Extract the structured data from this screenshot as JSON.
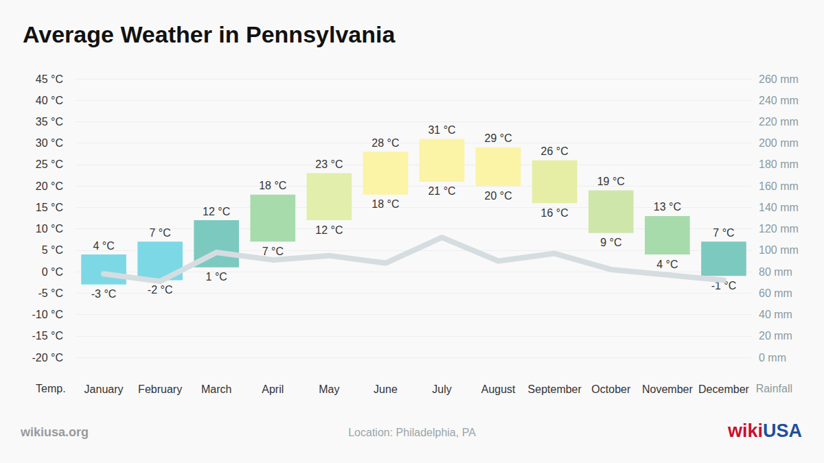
{
  "chart_data": {
    "type": "bar",
    "title": "Average Weather in Pennsylvania",
    "y_label": "Temp.",
    "y2_label": "Rainfall",
    "source": "wikiusa.org",
    "location": "Location: Philadelphia, PA",
    "logo": [
      "wiki",
      "USA"
    ],
    "categories": [
      "January",
      "February",
      "March",
      "April",
      "May",
      "June",
      "July",
      "August",
      "September",
      "October",
      "November",
      "December"
    ],
    "series": [
      {
        "type": "range",
        "high": [
          4,
          7,
          12,
          18,
          23,
          28,
          31,
          29,
          26,
          19,
          13,
          7
        ],
        "high_labels": [
          "4 °C",
          "7 °C",
          "12 °C",
          "18 °C",
          "23 °C",
          "28 °C",
          "31 °C",
          "29 °C",
          "26 °C",
          "19 °C",
          "13 °C",
          "7 °C"
        ],
        "low": [
          -3,
          -2,
          1,
          7,
          12,
          18,
          21,
          20,
          16,
          9,
          4,
          -1
        ],
        "low_labels": [
          "-3 °C",
          "-2 °C",
          "1 °C",
          "7 °C",
          "12 °C",
          "18 °C",
          "21 °C",
          "20 °C",
          "16 °C",
          "9 °C",
          "4 °C",
          "-1 °C"
        ],
        "colors": [
          "#7dd8e6",
          "#7dd8e6",
          "#7cc9c0",
          "#a8dbab",
          "#e1eeac",
          "#fbf3a6",
          "#fbf3a6",
          "#fbf3a6",
          "#e6eea6",
          "#cfe6ab",
          "#a8dbab",
          "#7cc9c0"
        ]
      },
      {
        "type": "line",
        "axis": "y2",
        "values": [
          78,
          71,
          98,
          91,
          95,
          88,
          112,
          90,
          97,
          82,
          77,
          72
        ],
        "color": "#d5dde0"
      }
    ],
    "ylim": [
      -20,
      45
    ],
    "yticks": [
      {
        "value": -20,
        "label": "-20 °C"
      },
      {
        "value": -15,
        "label": "-15 °C"
      },
      {
        "value": -10,
        "label": "-10 °C"
      },
      {
        "value": -5,
        "label": "-5 °C"
      },
      {
        "value": 0,
        "label": "0 °C"
      },
      {
        "value": 5,
        "label": "5 °C"
      },
      {
        "value": 10,
        "label": "10 °C"
      },
      {
        "value": 15,
        "label": "15 °C"
      },
      {
        "value": 20,
        "label": "20 °C"
      },
      {
        "value": 25,
        "label": "25 °C"
      },
      {
        "value": 30,
        "label": "30 °C"
      },
      {
        "value": 35,
        "label": "35 °C"
      },
      {
        "value": 40,
        "label": "40 °C"
      },
      {
        "value": 45,
        "label": "45 °C"
      }
    ],
    "y2lim": [
      0,
      260
    ],
    "y2ticks": [
      {
        "value": 0,
        "label": "0 mm"
      },
      {
        "value": 20,
        "label": "20 mm"
      },
      {
        "value": 40,
        "label": "40 mm"
      },
      {
        "value": 60,
        "label": "60 mm"
      },
      {
        "value": 80,
        "label": "80 mm"
      },
      {
        "value": 100,
        "label": "100 mm"
      },
      {
        "value": 120,
        "label": "120 mm"
      },
      {
        "value": 140,
        "label": "140 mm"
      },
      {
        "value": 160,
        "label": "160 mm"
      },
      {
        "value": 180,
        "label": "180 mm"
      },
      {
        "value": 200,
        "label": "200 mm"
      },
      {
        "value": 220,
        "label": "220 mm"
      },
      {
        "value": 240,
        "label": "240 mm"
      },
      {
        "value": 260,
        "label": "260 mm"
      }
    ],
    "grid": true,
    "data_labels": true
  }
}
